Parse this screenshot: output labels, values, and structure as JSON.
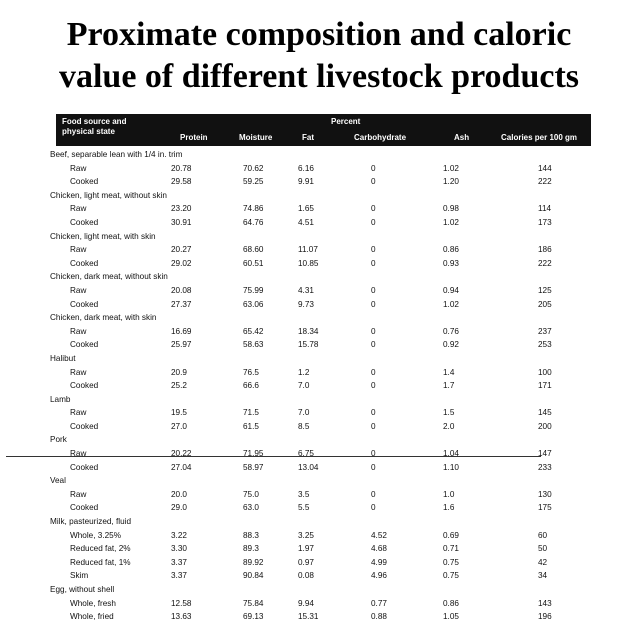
{
  "title_line1": "Proximate composition and caloric",
  "title_line2": "value of different livestock products",
  "table": {
    "header_col1a": "Food source and",
    "header_col1b": "physical state",
    "header_percent": "Percent",
    "headers": [
      "Protein",
      "Moisture",
      "Fat",
      "Carbohydrate",
      "Ash",
      "Calories per 100 gm"
    ],
    "rows": [
      {
        "kind": "group",
        "name": "Beef, separable lean with 1/4 in. trim"
      },
      {
        "kind": "item",
        "name": "Raw",
        "protein": "20.78",
        "moisture": "70.62",
        "fat": "6.16",
        "carb": "0",
        "ash": "1.02",
        "cal": "144"
      },
      {
        "kind": "item",
        "name": "Cooked",
        "protein": "29.58",
        "moisture": "59.25",
        "fat": "9.91",
        "carb": "0",
        "ash": "1.20",
        "cal": "222"
      },
      {
        "kind": "group",
        "name": "Chicken, light meat, without skin"
      },
      {
        "kind": "item",
        "name": "Raw",
        "protein": "23.20",
        "moisture": "74.86",
        "fat": "1.65",
        "carb": "0",
        "ash": "0.98",
        "cal": "114"
      },
      {
        "kind": "item",
        "name": "Cooked",
        "protein": "30.91",
        "moisture": "64.76",
        "fat": "4.51",
        "carb": "0",
        "ash": "1.02",
        "cal": "173"
      },
      {
        "kind": "group",
        "name": "Chicken, light meat, with skin"
      },
      {
        "kind": "item",
        "name": "Raw",
        "protein": "20.27",
        "moisture": "68.60",
        "fat": "11.07",
        "carb": "0",
        "ash": "0.86",
        "cal": "186"
      },
      {
        "kind": "item",
        "name": "Cooked",
        "protein": "29.02",
        "moisture": "60.51",
        "fat": "10.85",
        "carb": "0",
        "ash": "0.93",
        "cal": "222"
      },
      {
        "kind": "group",
        "name": "Chicken, dark meat, without skin"
      },
      {
        "kind": "item",
        "name": "Raw",
        "protein": "20.08",
        "moisture": "75.99",
        "fat": "4.31",
        "carb": "0",
        "ash": "0.94",
        "cal": "125"
      },
      {
        "kind": "item",
        "name": "Cooked",
        "protein": "27.37",
        "moisture": "63.06",
        "fat": "9.73",
        "carb": "0",
        "ash": "1.02",
        "cal": "205"
      },
      {
        "kind": "group",
        "name": "Chicken, dark meat, with skin"
      },
      {
        "kind": "item",
        "name": "Raw",
        "protein": "16.69",
        "moisture": "65.42",
        "fat": "18.34",
        "carb": "0",
        "ash": "0.76",
        "cal": "237"
      },
      {
        "kind": "item",
        "name": "Cooked",
        "protein": "25.97",
        "moisture": "58.63",
        "fat": "15.78",
        "carb": "0",
        "ash": "0.92",
        "cal": "253"
      },
      {
        "kind": "group",
        "name": "Halibut"
      },
      {
        "kind": "item",
        "name": "Raw",
        "protein": "20.9",
        "moisture": "76.5",
        "fat": "1.2",
        "carb": "0",
        "ash": "1.4",
        "cal": "100"
      },
      {
        "kind": "item",
        "name": "Cooked",
        "protein": "25.2",
        "moisture": "66.6",
        "fat": "7.0",
        "carb": "0",
        "ash": "1.7",
        "cal": "171"
      },
      {
        "kind": "group",
        "name": "Lamb"
      },
      {
        "kind": "item",
        "name": "Raw",
        "protein": "19.5",
        "moisture": "71.5",
        "fat": "7.0",
        "carb": "0",
        "ash": "1.5",
        "cal": "145"
      },
      {
        "kind": "item",
        "name": "Cooked",
        "protein": "27.0",
        "moisture": "61.5",
        "fat": "8.5",
        "carb": "0",
        "ash": "2.0",
        "cal": "200"
      },
      {
        "kind": "group",
        "name": "Pork"
      },
      {
        "kind": "item",
        "name": "Raw",
        "protein": "20.22",
        "moisture": "71.95",
        "fat": "6.75",
        "carb": "0",
        "ash": "1.04",
        "cal": "147"
      },
      {
        "kind": "item",
        "name": "Cooked",
        "protein": "27.04",
        "moisture": "58.97",
        "fat": "13.04",
        "carb": "0",
        "ash": "1.10",
        "cal": "233"
      },
      {
        "kind": "group",
        "name": "Veal"
      },
      {
        "kind": "item",
        "name": "Raw",
        "protein": "20.0",
        "moisture": "75.0",
        "fat": "3.5",
        "carb": "0",
        "ash": "1.0",
        "cal": "130"
      },
      {
        "kind": "item",
        "name": "Cooked",
        "protein": "29.0",
        "moisture": "63.0",
        "fat": "5.5",
        "carb": "0",
        "ash": "1.6",
        "cal": "175"
      },
      {
        "kind": "group",
        "name": "Milk, pasteurized, fluid"
      },
      {
        "kind": "item",
        "name": "Whole, 3.25%",
        "protein": "3.22",
        "moisture": "88.3",
        "fat": "3.25",
        "carb": "4.52",
        "ash": "0.69",
        "cal": "60"
      },
      {
        "kind": "item",
        "name": "Reduced fat, 2%",
        "protein": "3.30",
        "moisture": "89.3",
        "fat": "1.97",
        "carb": "4.68",
        "ash": "0.71",
        "cal": "50"
      },
      {
        "kind": "item",
        "name": "Reduced fat, 1%",
        "protein": "3.37",
        "moisture": "89.92",
        "fat": "0.97",
        "carb": "4.99",
        "ash": "0.75",
        "cal": "42"
      },
      {
        "kind": "item",
        "name": "Skim",
        "protein": "3.37",
        "moisture": "90.84",
        "fat": "0.08",
        "carb": "4.96",
        "ash": "0.75",
        "cal": "34"
      },
      {
        "kind": "group",
        "name": "Egg, without shell"
      },
      {
        "kind": "item",
        "name": "Whole, fresh",
        "protein": "12.58",
        "moisture": "75.84",
        "fat": "9.94",
        "carb": "0.77",
        "ash": "0.86",
        "cal": "143"
      },
      {
        "kind": "item",
        "name": "Whole, fried",
        "protein": "13.63",
        "moisture": "69.13",
        "fat": "15.31",
        "carb": "0.88",
        "ash": "1.05",
        "cal": "196"
      }
    ]
  }
}
